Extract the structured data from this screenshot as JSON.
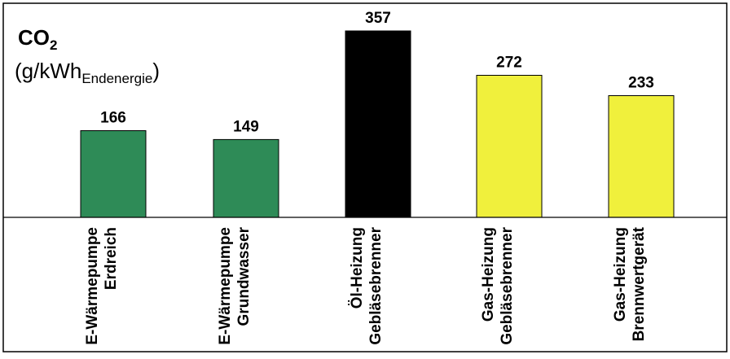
{
  "chart_data": {
    "type": "bar",
    "title": {
      "main": "CO",
      "main_subscript": "2",
      "unit_prefix": "(g/kWh",
      "unit_subscript": "Endenergie",
      "unit_suffix": ")"
    },
    "categories": [
      {
        "line1": "E-Wärmepumpe",
        "line2": "Erdreich"
      },
      {
        "line1": "E-Wärmepumpe",
        "line2": "Grundwasser"
      },
      {
        "line1": "Öl-Heizung",
        "line2": "Gebläsebrenner"
      },
      {
        "line1": "Gas-Heizung",
        "line2": "Gebläsebrenner"
      },
      {
        "line1": "Gas-Heizung",
        "line2": "Brennwertgerät"
      }
    ],
    "values": [
      166,
      149,
      357,
      272,
      233
    ],
    "value_labels": [
      "166",
      "149",
      "357",
      "272",
      "233"
    ],
    "colors": [
      "#2e8b57",
      "#2e8b57",
      "#000000",
      "#f0f03c",
      "#f0f03c"
    ],
    "ylim": [
      0,
      357
    ],
    "grid": false,
    "legend": "none"
  }
}
